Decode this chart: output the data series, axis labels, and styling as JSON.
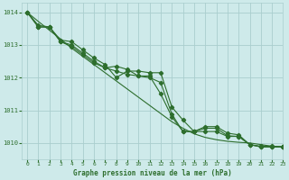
{
  "title": "Graphe pression niveau de la mer (hPa)",
  "bg_color": "#ceeaea",
  "grid_color": "#aacece",
  "line_color": "#2d6e2d",
  "xlim": [
    -0.5,
    23
  ],
  "ylim": [
    1009.5,
    1014.3
  ],
  "yticks": [
    1010,
    1011,
    1012,
    1013,
    1014
  ],
  "xticks": [
    0,
    1,
    2,
    3,
    4,
    5,
    6,
    7,
    8,
    9,
    10,
    11,
    12,
    13,
    14,
    15,
    16,
    17,
    18,
    19,
    20,
    21,
    22,
    23
  ],
  "series": {
    "smooth": [
      1014.0,
      1013.72,
      1013.45,
      1013.18,
      1012.9,
      1012.65,
      1012.4,
      1012.15,
      1011.9,
      1011.65,
      1011.4,
      1011.15,
      1010.9,
      1010.65,
      1010.45,
      1010.28,
      1010.17,
      1010.1,
      1010.05,
      1010.02,
      1010.0,
      1009.95,
      1009.9,
      1009.88
    ],
    "line1": [
      1014.0,
      1013.6,
      1013.55,
      1013.15,
      1013.1,
      1012.85,
      1012.6,
      1012.4,
      1012.0,
      1012.2,
      1012.2,
      1012.15,
      1012.15,
      1011.1,
      1010.7,
      1010.35,
      1010.35,
      1010.35,
      1010.2,
      1010.2,
      1009.95,
      1009.9,
      1009.9,
      1009.88
    ],
    "line2": [
      1014.0,
      1013.55,
      1013.55,
      1013.1,
      1013.0,
      1012.75,
      1012.5,
      1012.3,
      1012.2,
      1012.1,
      1012.05,
      1012.05,
      1011.5,
      1010.8,
      1010.35,
      1010.35,
      1010.45,
      1010.45,
      1010.22,
      1010.2,
      1009.95,
      1009.88,
      1009.88,
      1009.88
    ],
    "line3": [
      1014.0,
      1013.55,
      1013.55,
      1013.1,
      1012.95,
      1012.7,
      1012.45,
      1012.3,
      1012.35,
      1012.25,
      1012.05,
      1012.0,
      1011.85,
      1010.88,
      1010.35,
      1010.35,
      1010.5,
      1010.5,
      1010.3,
      1010.25,
      1009.95,
      1009.88,
      1009.88,
      1009.88
    ]
  }
}
